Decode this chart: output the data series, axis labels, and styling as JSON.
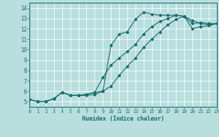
{
  "xlabel": "Humidex (Indice chaleur)",
  "xlim": [
    0,
    23
  ],
  "ylim": [
    4.5,
    14.5
  ],
  "xticks": [
    0,
    1,
    2,
    3,
    4,
    5,
    6,
    7,
    8,
    9,
    10,
    11,
    12,
    13,
    14,
    15,
    16,
    17,
    18,
    19,
    20,
    21,
    22,
    23
  ],
  "yticks": [
    5,
    6,
    7,
    8,
    9,
    10,
    11,
    12,
    13,
    14
  ],
  "bg_color": "#b8dede",
  "line_color": "#1a6b6b",
  "grid_color": "#e8f8f8",
  "line1_x": [
    0,
    1,
    2,
    3,
    4,
    5,
    6,
    7,
    8,
    9,
    10,
    11,
    12,
    13,
    14,
    15,
    16,
    17,
    18,
    19,
    20,
    21,
    22,
    23
  ],
  "line1_y": [
    5.2,
    5.0,
    5.0,
    5.3,
    5.9,
    5.6,
    5.6,
    5.6,
    5.7,
    6.0,
    10.4,
    11.5,
    11.7,
    12.9,
    13.6,
    13.4,
    13.3,
    13.3,
    13.3,
    13.2,
    12.5,
    12.6,
    12.5,
    12.5
  ],
  "line2_x": [
    0,
    1,
    2,
    3,
    4,
    5,
    6,
    7,
    8,
    9,
    10,
    11,
    12,
    13,
    14,
    15,
    16,
    17,
    18,
    19,
    20,
    21,
    22,
    23
  ],
  "line2_y": [
    5.2,
    5.0,
    5.0,
    5.3,
    5.9,
    5.6,
    5.6,
    5.7,
    5.9,
    7.3,
    8.5,
    9.2,
    9.8,
    10.5,
    11.5,
    12.2,
    12.7,
    13.0,
    13.3,
    13.2,
    12.8,
    12.5,
    12.4,
    12.5
  ],
  "line3_x": [
    0,
    1,
    2,
    3,
    4,
    5,
    6,
    7,
    8,
    9,
    10,
    11,
    12,
    13,
    14,
    15,
    16,
    17,
    18,
    19,
    20,
    21,
    22,
    23
  ],
  "line3_y": [
    5.2,
    5.0,
    5.0,
    5.3,
    5.9,
    5.6,
    5.6,
    5.7,
    5.9,
    6.0,
    6.5,
    7.5,
    8.4,
    9.2,
    10.2,
    11.0,
    11.7,
    12.4,
    12.9,
    13.2,
    12.0,
    12.2,
    12.3,
    12.5
  ]
}
